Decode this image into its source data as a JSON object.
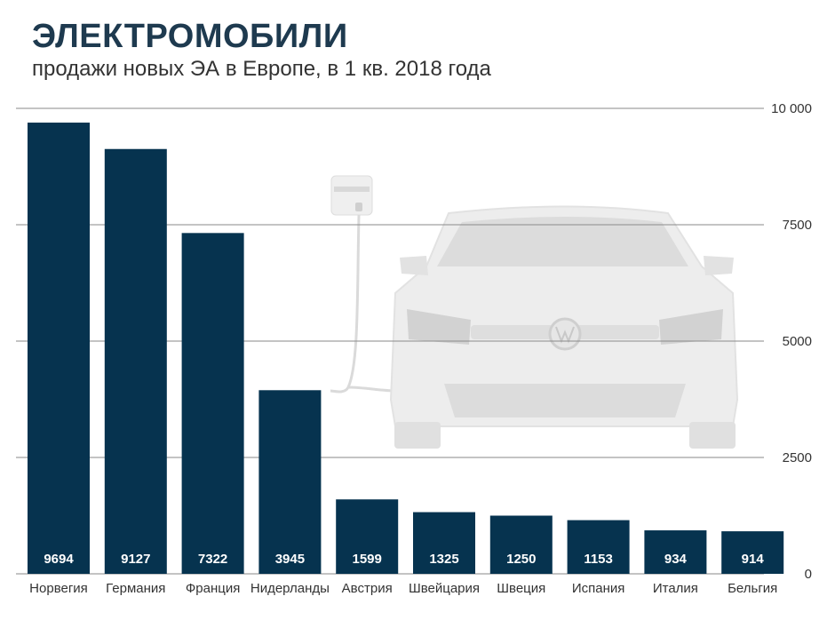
{
  "title": "ЭЛЕКТРОМОБИЛИ",
  "subtitle": "продажи новых ЭА в Европе, в 1 кв. 2018 года",
  "colors": {
    "bar": "#06334f",
    "bar_label": "#ffffff",
    "grid": "#8a8a8a",
    "axis_text": "#333333",
    "car": "#e9e9e9"
  },
  "chart_data": {
    "type": "bar",
    "categories": [
      "Норвегия",
      "Германия",
      "Франция",
      "Нидерланды",
      "Австрия",
      "Швейцария",
      "Швеция",
      "Испания",
      "Италия",
      "Бельгия"
    ],
    "values": [
      9694,
      9127,
      7322,
      3945,
      1599,
      1325,
      1250,
      1153,
      934,
      914
    ],
    "value_labels": [
      "9694",
      "9127",
      "7322",
      "3945",
      "1599",
      "1325",
      "1250",
      "1153",
      "934",
      "914"
    ],
    "yticks": [
      0,
      2500,
      5000,
      7500,
      10000
    ],
    "ytick_labels": [
      "0",
      "2500",
      "5000",
      "7500",
      "10 000"
    ],
    "ylim": [
      0,
      10000
    ],
    "y_axis_side": "right",
    "grid": true,
    "xlabel": "",
    "ylabel": ""
  }
}
